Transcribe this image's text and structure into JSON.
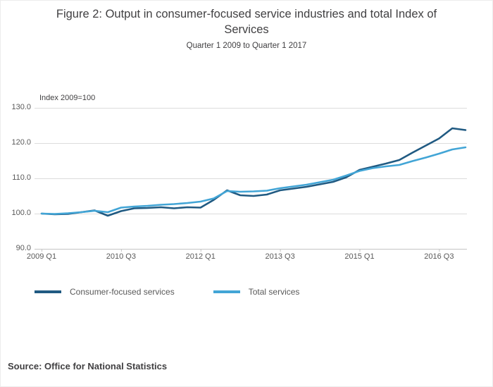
{
  "chart_data": {
    "type": "line",
    "title": "Figure 2: Output in consumer-focused service industries and total Index of Services",
    "subtitle": "Quarter 1 2009 to Quarter 1 2017",
    "unit_label": "Index 2009=100",
    "source": "Source: Office for National Statistics",
    "ylim": [
      90,
      130
    ],
    "grid": true,
    "legend_position": "bottom",
    "x": [
      "2009 Q1",
      "2009 Q2",
      "2009 Q3",
      "2009 Q4",
      "2010 Q1",
      "2010 Q2",
      "2010 Q3",
      "2010 Q4",
      "2011 Q1",
      "2011 Q2",
      "2011 Q3",
      "2011 Q4",
      "2012 Q1",
      "2012 Q2",
      "2012 Q3",
      "2012 Q4",
      "2013 Q1",
      "2013 Q2",
      "2013 Q3",
      "2013 Q4",
      "2014 Q1",
      "2014 Q2",
      "2014 Q3",
      "2014 Q4",
      "2015 Q1",
      "2015 Q2",
      "2015 Q3",
      "2015 Q4",
      "2016 Q1",
      "2016 Q2",
      "2016 Q3",
      "2016 Q4",
      "2017 Q1"
    ],
    "y_ticks": [
      {
        "value": 90,
        "label": "90.0"
      },
      {
        "value": 100,
        "label": "100.0"
      },
      {
        "value": 110,
        "label": "110.0"
      },
      {
        "value": 120,
        "label": "120.0"
      },
      {
        "value": 130,
        "label": "130.0"
      }
    ],
    "x_ticks": [
      {
        "index": 0,
        "label": "2009 Q1"
      },
      {
        "index": 6,
        "label": "2010 Q3"
      },
      {
        "index": 12,
        "label": "2012 Q1"
      },
      {
        "index": 18,
        "label": "2013 Q3"
      },
      {
        "index": 24,
        "label": "2015 Q1"
      },
      {
        "index": 30,
        "label": "2016 Q3"
      }
    ],
    "series": [
      {
        "name": "Consumer-focused services",
        "color": "#205a82",
        "values": [
          100.0,
          99.8,
          99.9,
          100.4,
          100.9,
          99.4,
          100.7,
          101.5,
          101.6,
          101.8,
          101.5,
          101.8,
          101.7,
          103.9,
          106.6,
          105.2,
          105.0,
          105.4,
          106.6,
          107.1,
          107.6,
          108.3,
          109.0,
          110.3,
          112.4,
          113.3,
          114.2,
          115.2,
          117.3,
          119.3,
          121.3,
          124.2,
          123.7
        ]
      },
      {
        "name": "Total services",
        "color": "#42a5d6",
        "values": [
          100.0,
          99.9,
          100.1,
          100.4,
          100.8,
          100.4,
          101.7,
          102.0,
          102.2,
          102.5,
          102.7,
          103.0,
          103.4,
          104.3,
          106.4,
          106.2,
          106.3,
          106.5,
          107.2,
          107.7,
          108.2,
          108.9,
          109.6,
          110.8,
          112.1,
          112.9,
          113.4,
          113.8,
          114.9,
          115.9,
          117.0,
          118.2,
          118.8
        ]
      }
    ]
  }
}
